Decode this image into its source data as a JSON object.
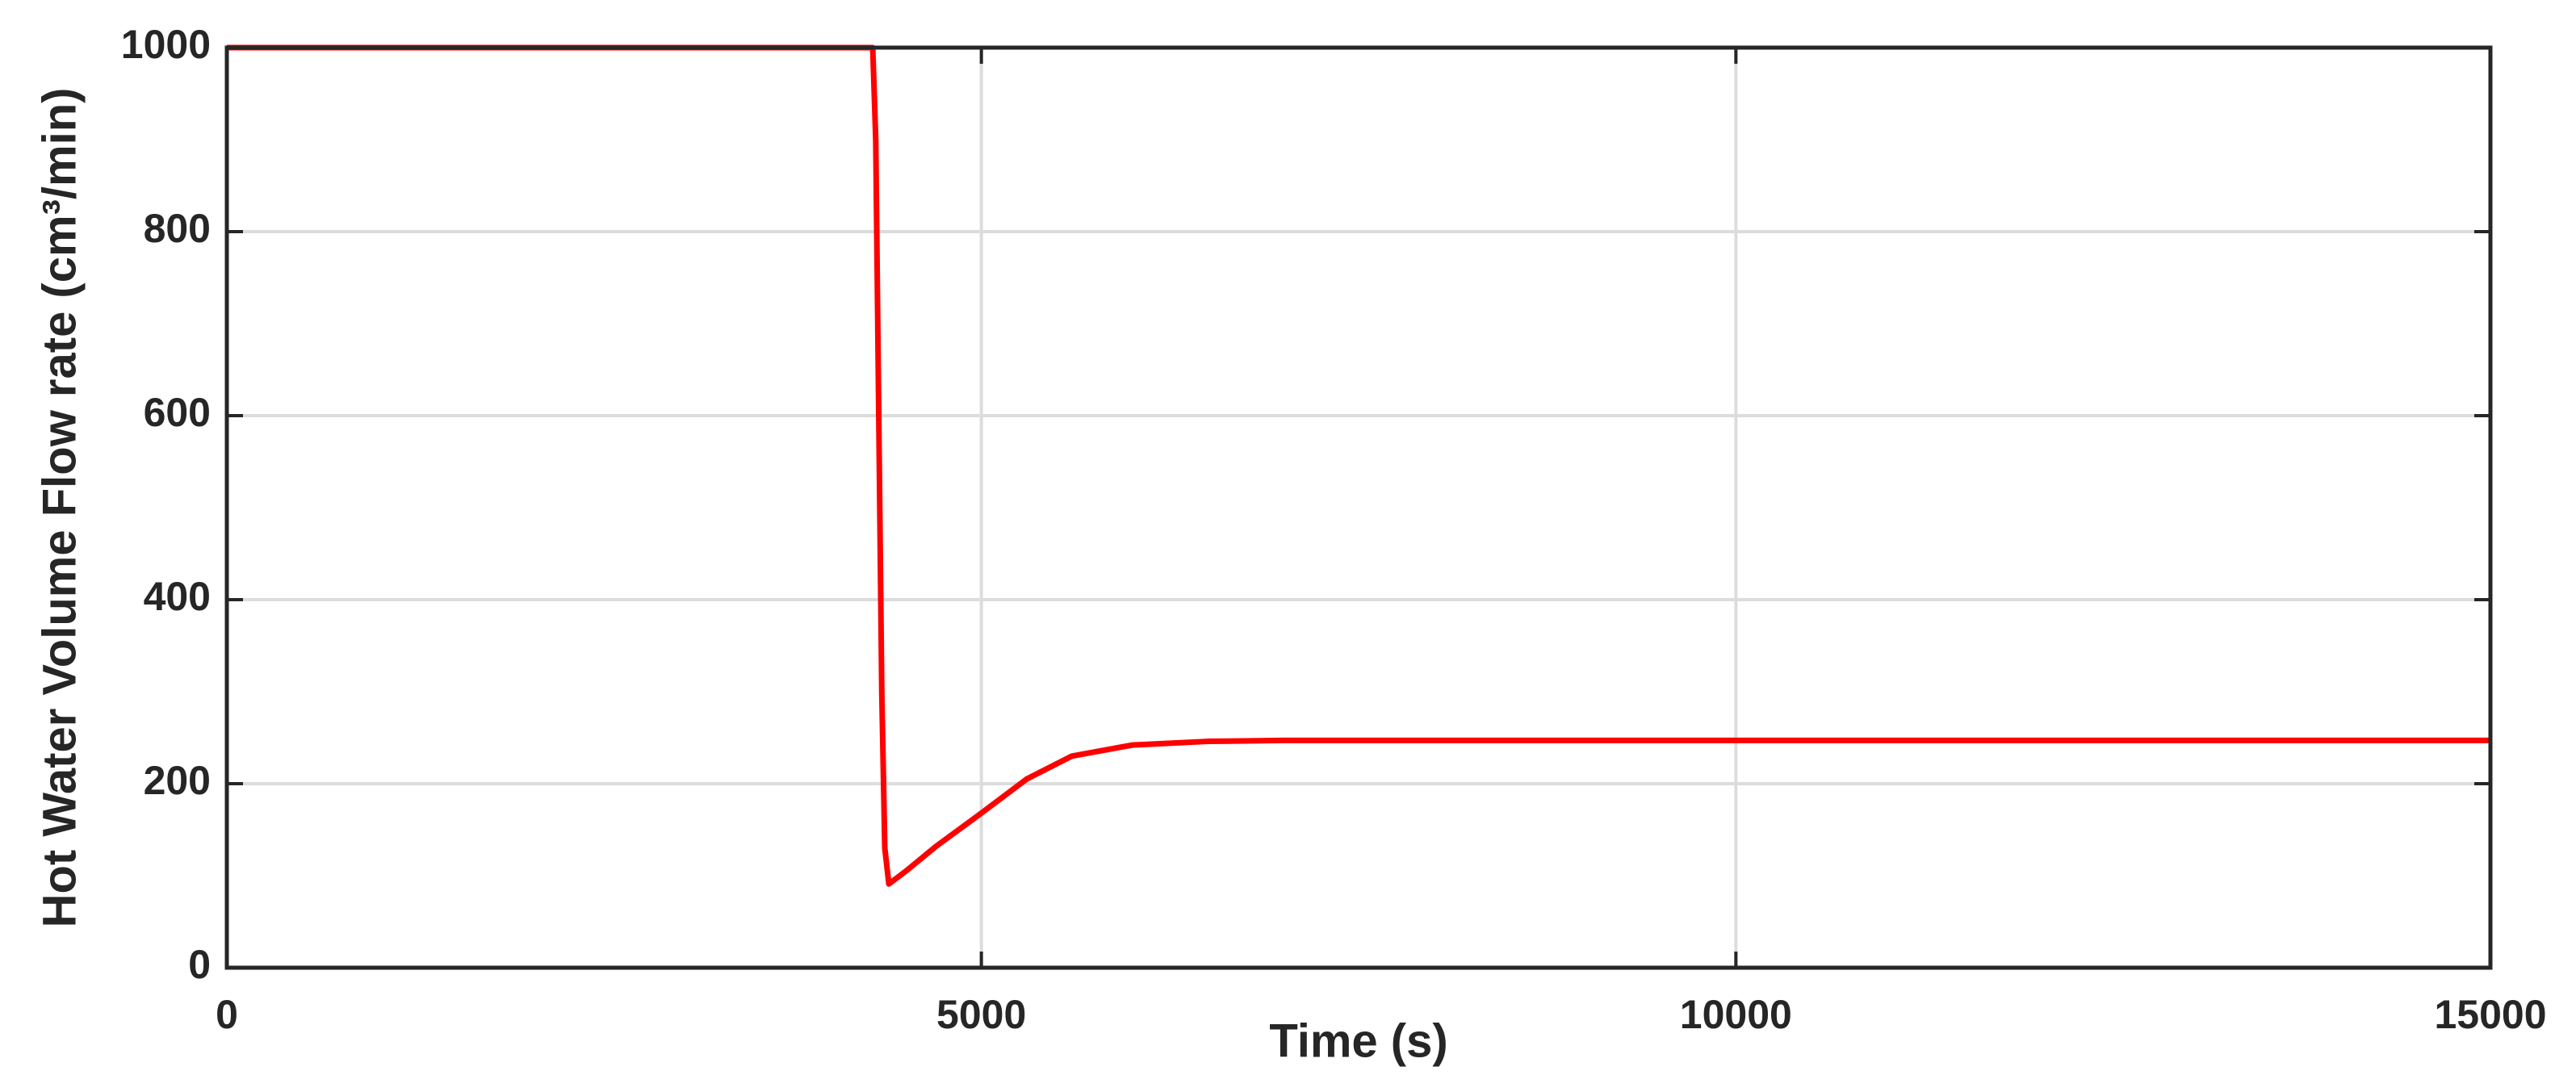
{
  "chart_data": {
    "type": "line",
    "xlabel": "Time (s)",
    "ylabel": "Hot Water Volume Flow rate (cm³/min)",
    "x": [
      0,
      4280,
      4300,
      4320,
      4340,
      4360,
      4387,
      4500,
      4700,
      5000,
      5300,
      5600,
      6000,
      6500,
      7000,
      8000,
      15000
    ],
    "series": [
      {
        "color": "#ff0000",
        "values": [
          1000,
          1000,
          900,
          600,
          300,
          130,
          91,
          105,
          132,
          168,
          205,
          230,
          242,
          246,
          247,
          247,
          247
        ]
      }
    ],
    "xlim": [
      0,
      15000
    ],
    "xticks": [
      0,
      5000,
      10000,
      15000
    ],
    "ylim": [
      0,
      1000
    ],
    "yticks": [
      0,
      200,
      400,
      600,
      800,
      1000
    ],
    "grid": true
  }
}
